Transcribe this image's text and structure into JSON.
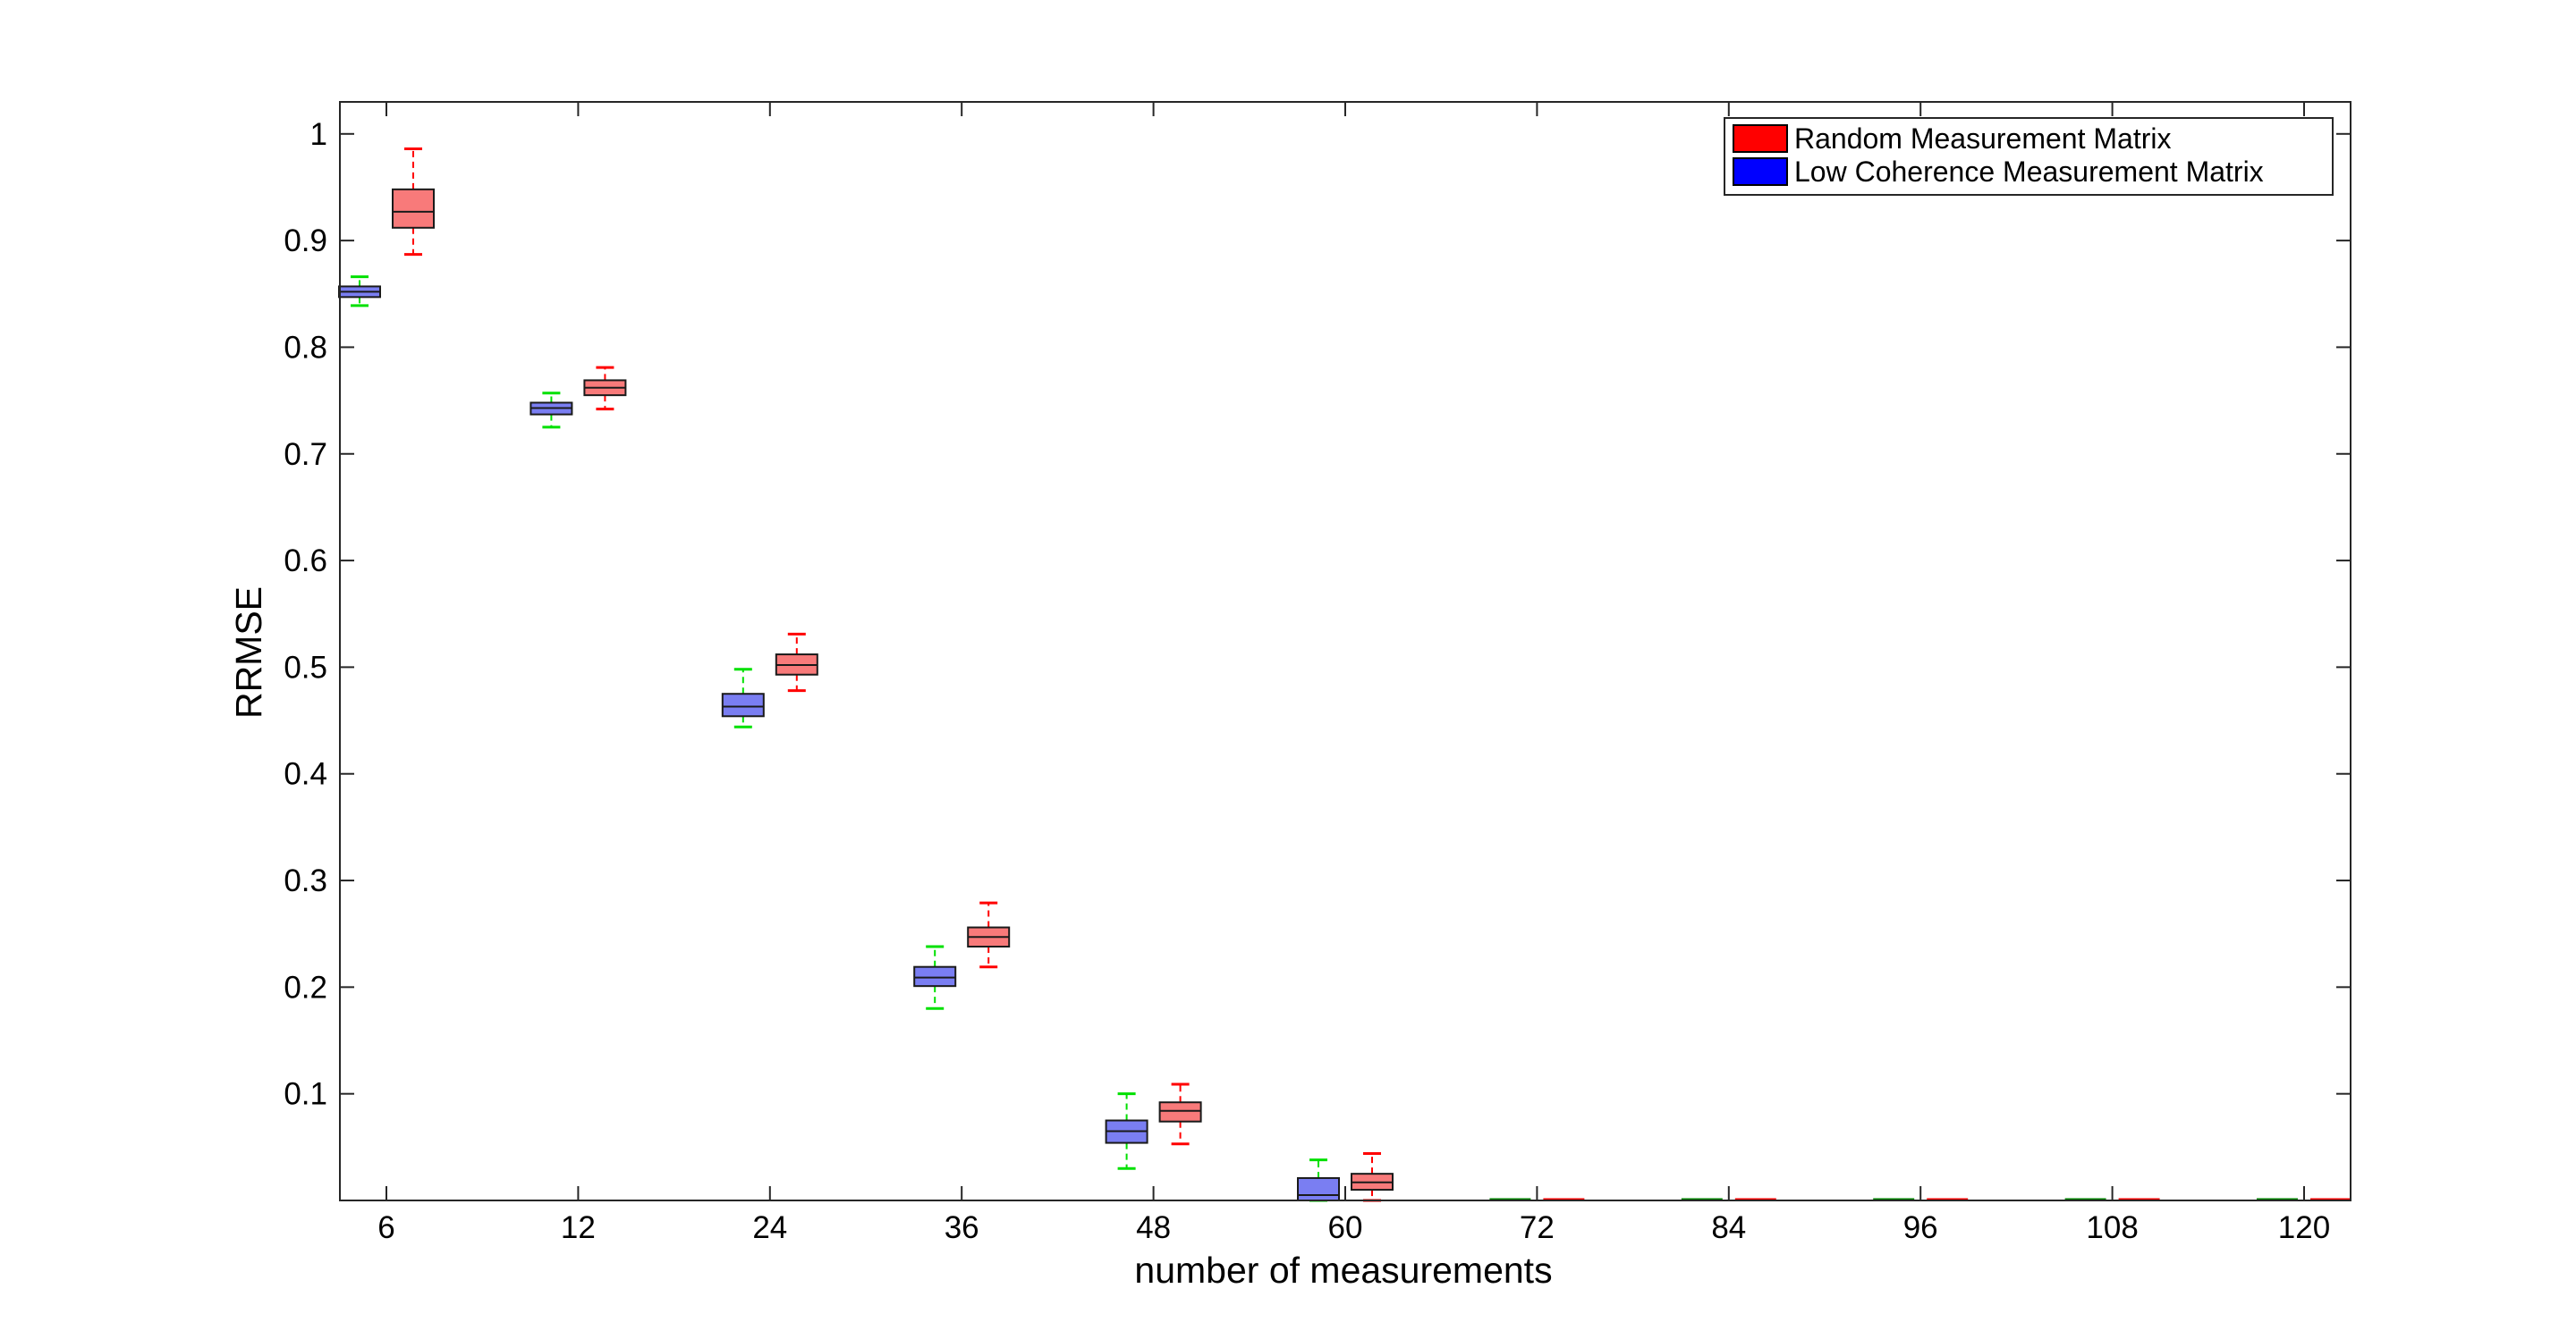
{
  "chart_data": {
    "type": "box",
    "xlabel": "number of measurements",
    "ylabel": "RRMSE",
    "categories": [
      "6",
      "12",
      "24",
      "36",
      "48",
      "60",
      "72",
      "84",
      "96",
      "108",
      "120"
    ],
    "ylim": [
      0,
      1.03
    ],
    "yticks": [
      0.1,
      0.2,
      0.3,
      0.4,
      0.5,
      0.6,
      0.7,
      0.8,
      0.9,
      1
    ],
    "ytick_labels": [
      "0.1",
      "0.2",
      "0.3",
      "0.4",
      "0.5",
      "0.6",
      "0.7",
      "0.8",
      "0.9",
      "1"
    ],
    "grid": false,
    "legend_position": "top-right",
    "series": [
      {
        "name": "Random Measurement Matrix",
        "color": "#ff0000",
        "box_fill": "#f87a7a",
        "whisker_color": "#ff0000",
        "boxes": [
          {
            "whisker_low": 0.887,
            "q1": 0.912,
            "median": 0.927,
            "q3": 0.948,
            "whisker_high": 0.986
          },
          {
            "whisker_low": 0.742,
            "q1": 0.755,
            "median": 0.762,
            "q3": 0.769,
            "whisker_high": 0.781
          },
          {
            "whisker_low": 0.478,
            "q1": 0.493,
            "median": 0.502,
            "q3": 0.512,
            "whisker_high": 0.531
          },
          {
            "whisker_low": 0.219,
            "q1": 0.238,
            "median": 0.247,
            "q3": 0.256,
            "whisker_high": 0.279
          },
          {
            "whisker_low": 0.053,
            "q1": 0.074,
            "median": 0.084,
            "q3": 0.092,
            "whisker_high": 0.109
          },
          {
            "whisker_low": 0.0,
            "q1": 0.01,
            "median": 0.017,
            "q3": 0.025,
            "whisker_high": 0.044
          },
          {
            "whisker_low": 0.0,
            "q1": 0.0,
            "median": 0.0,
            "q3": 0.0,
            "whisker_high": 0.0
          },
          {
            "whisker_low": 0.0,
            "q1": 0.0,
            "median": 0.0,
            "q3": 0.0,
            "whisker_high": 0.0
          },
          {
            "whisker_low": 0.0,
            "q1": 0.0,
            "median": 0.0,
            "q3": 0.0,
            "whisker_high": 0.0
          },
          {
            "whisker_low": 0.0,
            "q1": 0.0,
            "median": 0.0,
            "q3": 0.0,
            "whisker_high": 0.0
          },
          {
            "whisker_low": 0.0,
            "q1": 0.0,
            "median": 0.0,
            "q3": 0.0,
            "whisker_high": 0.0
          }
        ]
      },
      {
        "name": "Low Coherence Measurement Matrix",
        "color": "#0000ff",
        "box_fill": "#7a7ef2",
        "whisker_color": "#00e000",
        "boxes": [
          {
            "whisker_low": 0.839,
            "q1": 0.847,
            "median": 0.852,
            "q3": 0.857,
            "whisker_high": 0.866
          },
          {
            "whisker_low": 0.725,
            "q1": 0.737,
            "median": 0.743,
            "q3": 0.748,
            "whisker_high": 0.757
          },
          {
            "whisker_low": 0.444,
            "q1": 0.454,
            "median": 0.463,
            "q3": 0.475,
            "whisker_high": 0.498
          },
          {
            "whisker_low": 0.18,
            "q1": 0.201,
            "median": 0.209,
            "q3": 0.219,
            "whisker_high": 0.238
          },
          {
            "whisker_low": 0.03,
            "q1": 0.054,
            "median": 0.065,
            "q3": 0.075,
            "whisker_high": 0.1
          },
          {
            "whisker_low": 0.0,
            "q1": 0.0,
            "median": 0.005,
            "q3": 0.021,
            "whisker_high": 0.038
          },
          {
            "whisker_low": 0.0,
            "q1": 0.0,
            "median": 0.0,
            "q3": 0.0,
            "whisker_high": 0.0
          },
          {
            "whisker_low": 0.0,
            "q1": 0.0,
            "median": 0.0,
            "q3": 0.0,
            "whisker_high": 0.0
          },
          {
            "whisker_low": 0.0,
            "q1": 0.0,
            "median": 0.0,
            "q3": 0.0,
            "whisker_high": 0.0
          },
          {
            "whisker_low": 0.0,
            "q1": 0.0,
            "median": 0.0,
            "q3": 0.0,
            "whisker_high": 0.0
          },
          {
            "whisker_low": 0.0,
            "q1": 0.0,
            "median": 0.0,
            "q3": 0.0,
            "whisker_high": 0.0
          }
        ]
      }
    ]
  }
}
